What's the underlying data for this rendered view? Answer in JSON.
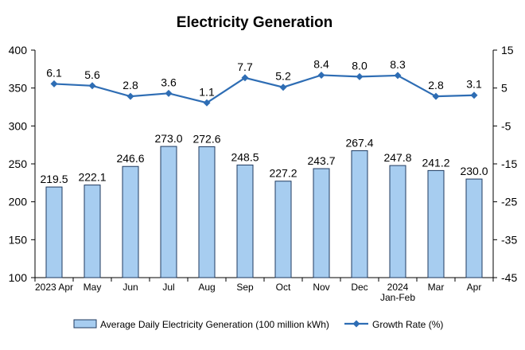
{
  "chart_data": {
    "type": "bar",
    "title": "Electricity Generation",
    "categories": [
      "2023 Apr",
      "May",
      "Jun",
      "Jul",
      "Aug",
      "Sep",
      "Oct",
      "Nov",
      "Dec",
      "2024\nJan-Feb",
      "Mar",
      "Apr"
    ],
    "series": [
      {
        "name": "Average Daily Electricity Generation (100 million kWh)",
        "type": "bar",
        "axis": "left",
        "values": [
          219.5,
          222.1,
          246.6,
          273.0,
          272.6,
          248.5,
          227.2,
          243.7,
          267.4,
          247.8,
          241.2,
          230.0
        ],
        "labels": [
          "219.5",
          "222.1",
          "246.6",
          "273.0",
          "272.6",
          "248.5",
          "227.2",
          "243.7",
          "267.4",
          "247.8",
          "241.2",
          "230.0"
        ]
      },
      {
        "name": "Growth Rate (%)",
        "type": "line",
        "axis": "right",
        "values": [
          6.1,
          5.6,
          2.8,
          3.6,
          1.1,
          7.7,
          5.2,
          8.4,
          8.0,
          8.3,
          2.8,
          3.1
        ],
        "labels": [
          "6.1",
          "5.6",
          "2.8",
          "3.6",
          "1.1",
          "7.7",
          "5.2",
          "8.4",
          "8.0",
          "8.3",
          "2.8",
          "3.1"
        ]
      }
    ],
    "y_left": {
      "min": 100,
      "max": 400,
      "ticks": [
        100,
        150,
        200,
        250,
        300,
        350,
        400
      ]
    },
    "y_right": {
      "min": -45,
      "max": 15,
      "ticks": [
        -45,
        -35,
        -25,
        -15,
        -5,
        5,
        15
      ]
    },
    "grid": false,
    "legend_position": "bottom",
    "colors": {
      "bar_fill": "#a7cdf0",
      "bar_stroke": "#1f3a5f",
      "line": "#2e6db4",
      "axis": "#000000"
    }
  }
}
